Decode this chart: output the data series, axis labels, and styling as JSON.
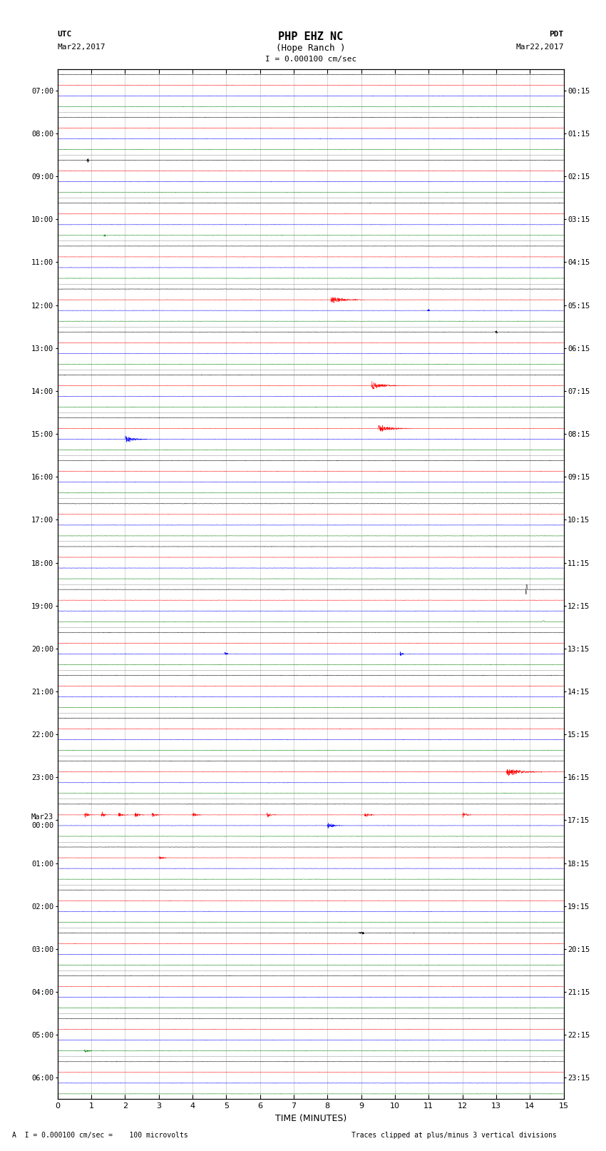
{
  "title_line1": "PHP EHZ NC",
  "title_line2": "(Hope Ranch )",
  "scale_label": "I = 0.000100 cm/sec",
  "left_label_top": "UTC",
  "left_label_date": "Mar22,2017",
  "right_label_top": "PDT",
  "right_label_date": "Mar22,2017",
  "bottom_label": "TIME (MINUTES)",
  "footnote_left": "A  I = 0.000100 cm/sec =    100 microvolts",
  "footnote_right": "Traces clipped at plus/minus 3 vertical divisions",
  "utc_labels": [
    "07:00",
    "08:00",
    "09:00",
    "10:00",
    "11:00",
    "12:00",
    "13:00",
    "14:00",
    "15:00",
    "16:00",
    "17:00",
    "18:00",
    "19:00",
    "20:00",
    "21:00",
    "22:00",
    "23:00",
    "Mar23\n00:00",
    "01:00",
    "02:00",
    "03:00",
    "04:00",
    "05:00",
    "06:00"
  ],
  "pdt_labels": [
    "00:15",
    "01:15",
    "02:15",
    "03:15",
    "04:15",
    "05:15",
    "06:15",
    "07:15",
    "08:15",
    "09:15",
    "10:15",
    "11:15",
    "12:15",
    "13:15",
    "14:15",
    "15:15",
    "16:15",
    "17:15",
    "18:15",
    "19:15",
    "20:15",
    "21:15",
    "22:15",
    "23:15"
  ],
  "colors": {
    "black": "#000000",
    "red": "#ff0000",
    "blue": "#0000ff",
    "green": "#008000",
    "background": "#ffffff",
    "grid": "#888888"
  },
  "n_rows": 24,
  "traces_per_row": 4,
  "minutes": 15,
  "noise_amplitude": 0.006,
  "fig_width": 8.5,
  "fig_height": 16.13,
  "dpi": 100
}
